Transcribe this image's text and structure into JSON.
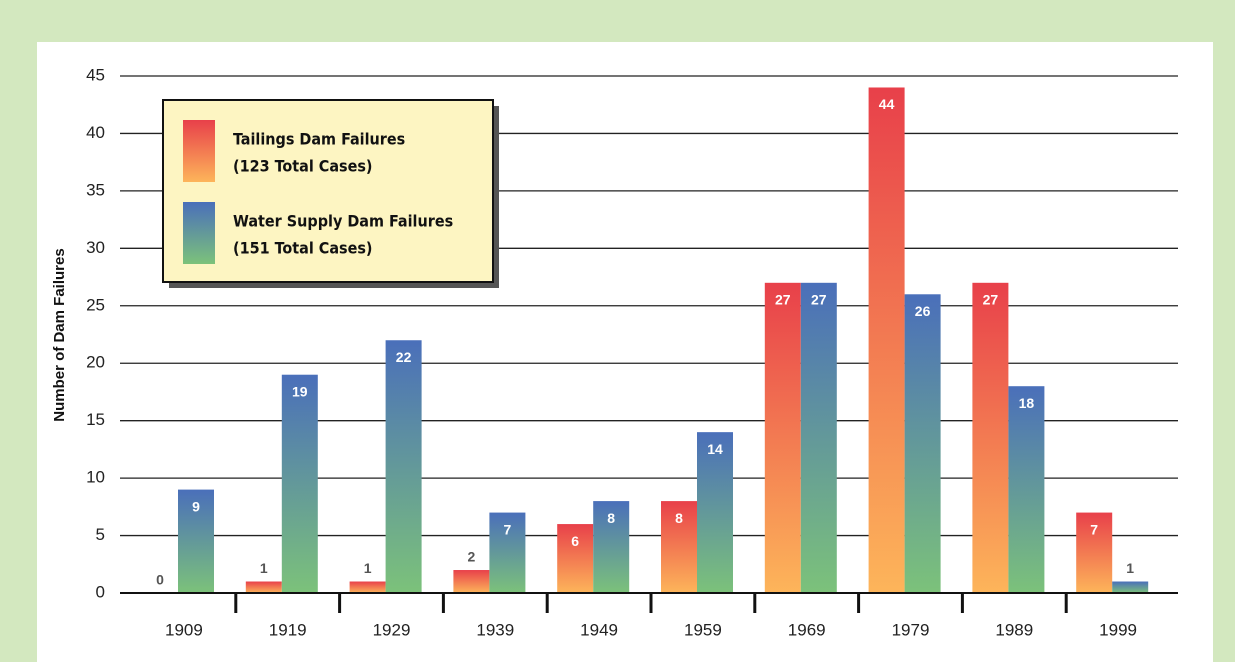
{
  "chart_data": {
    "type": "bar",
    "y_label": "Number of Dam Failures",
    "categories": [
      "1909",
      "1919",
      "1929",
      "1939",
      "1949",
      "1959",
      "1969",
      "1979",
      "1989",
      "1999"
    ],
    "series": [
      {
        "name": "Tailings Dam Failures",
        "total": "(123 Total Cases)",
        "color": [
          "#e8404a",
          "#fdb55a"
        ],
        "values": [
          0,
          1,
          1,
          2,
          6,
          8,
          27,
          44,
          27,
          7
        ]
      },
      {
        "name": "Water Supply Dam Failures",
        "total": "(151 Total Cases)",
        "color": [
          "#4a6fba",
          "#7cc27a"
        ],
        "values": [
          9,
          19,
          22,
          7,
          8,
          14,
          27,
          26,
          18,
          1
        ]
      }
    ],
    "ylim": [
      0,
      45
    ],
    "yticks": [
      0,
      5,
      10,
      15,
      20,
      25,
      30,
      35,
      40,
      45
    ],
    "grid": true,
    "legend": "upper left"
  }
}
